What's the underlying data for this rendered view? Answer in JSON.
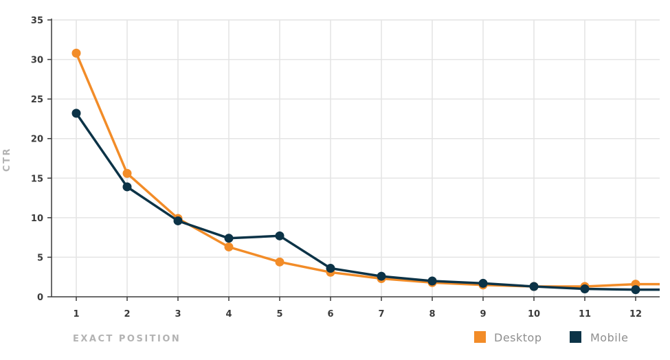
{
  "chart_data": {
    "type": "line",
    "xlabel": "EXACT POSITION",
    "ylabel": "CTR",
    "x": [
      1,
      2,
      3,
      4,
      5,
      6,
      7,
      8,
      9,
      10,
      11,
      12
    ],
    "ylim": [
      0,
      35
    ],
    "yticks": [
      0,
      5,
      10,
      15,
      20,
      25,
      30,
      35
    ],
    "grid": true,
    "legend_position": "bottom-right",
    "series": [
      {
        "name": "Desktop",
        "color": "#f28c28",
        "values": [
          30.8,
          15.6,
          9.9,
          6.3,
          4.4,
          3.1,
          2.3,
          1.8,
          1.5,
          1.3,
          1.3,
          1.6
        ]
      },
      {
        "name": "Mobile",
        "color": "#0c3347",
        "values": [
          23.2,
          13.9,
          9.6,
          7.4,
          7.7,
          3.6,
          2.6,
          2.0,
          1.7,
          1.3,
          1.0,
          0.9
        ]
      }
    ]
  }
}
